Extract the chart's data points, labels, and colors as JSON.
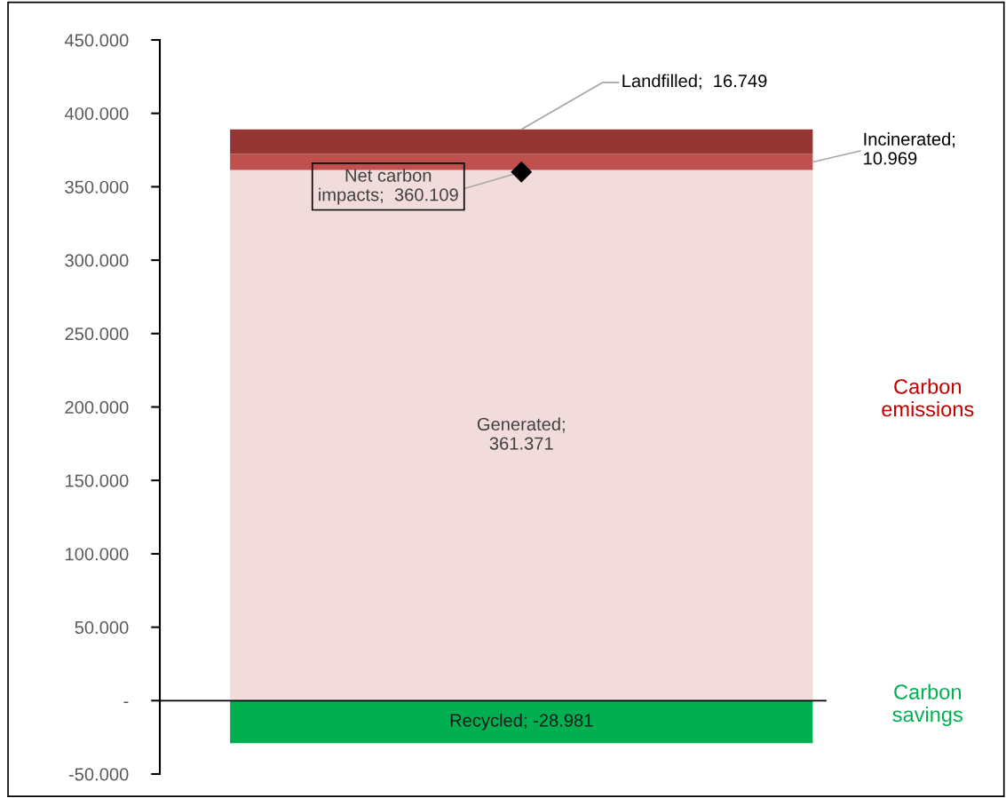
{
  "chart_data": {
    "type": "bar",
    "stacked": true,
    "categories": [
      null
    ],
    "series": [
      {
        "color": "#f2dcdb",
        "values": [
          361.371
        ],
        "value_labels": [
          "Generated;\n361.371"
        ]
      },
      {
        "color": "#c0504d",
        "values": [
          10.969
        ],
        "value_labels": [
          "Incinerated;\n10.969"
        ]
      },
      {
        "color": "#963634",
        "values": [
          16.749
        ],
        "value_labels": [
          "Landfilled;  16.749"
        ]
      },
      {
        "color": "#00b050",
        "values": [
          -28.981
        ],
        "value_labels": [
          "Recycled; -28.981"
        ]
      },
      {
        "type": "scatter",
        "marker": "diamond",
        "color": "#000000",
        "values": [
          360.109
        ],
        "value_labels": [
          "Net carbon\nimpacts;  360.109"
        ]
      }
    ],
    "ylim": [
      -50,
      450
    ],
    "yticks": [
      {
        "value": -50,
        "label": "-50.000"
      },
      {
        "value": 0,
        "label": "-"
      },
      {
        "value": 50,
        "label": "50.000"
      },
      {
        "value": 100,
        "label": "100.000"
      },
      {
        "value": 150,
        "label": "150.000"
      },
      {
        "value": 200,
        "label": "200.000"
      },
      {
        "value": 250,
        "label": "250.000"
      },
      {
        "value": 300,
        "label": "300.000"
      },
      {
        "value": 350,
        "label": "350.000"
      },
      {
        "value": 400,
        "label": "400.000"
      },
      {
        "value": 450,
        "label": "450.000"
      }
    ],
    "legend": false,
    "annotations": [
      "Carbon\nemissions",
      "Carbon\nsavings"
    ]
  }
}
